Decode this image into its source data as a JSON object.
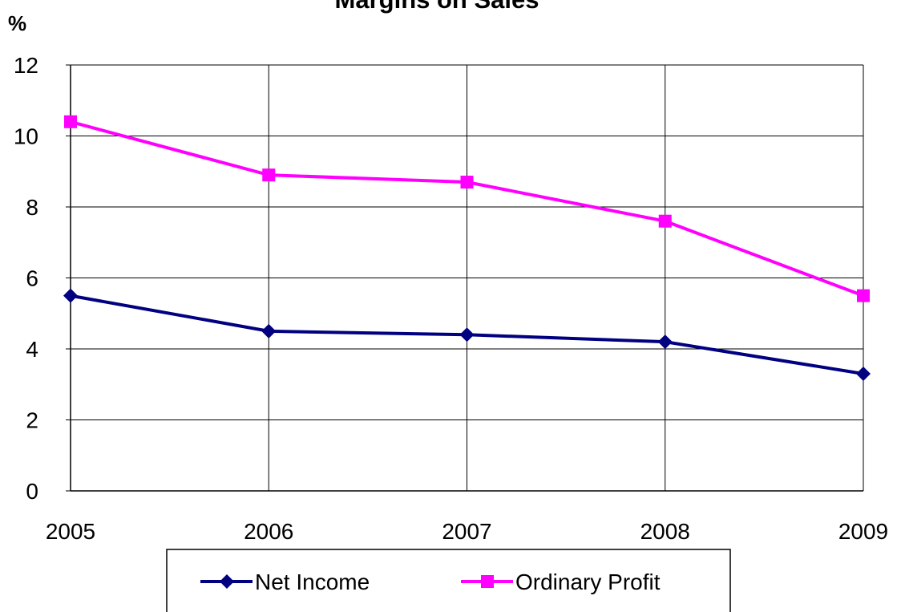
{
  "chart_data": {
    "type": "line",
    "title": "Margins on Sales",
    "y_label": "%",
    "categories": [
      "2005",
      "2006",
      "2007",
      "2008",
      "2009"
    ],
    "series": [
      {
        "name": "Net Income",
        "color": "#000080",
        "marker": "diamond",
        "values": [
          5.5,
          4.5,
          4.4,
          4.2,
          3.3
        ]
      },
      {
        "name": "Ordinary Profit",
        "color": "#ff00ff",
        "marker": "square",
        "values": [
          10.4,
          8.9,
          8.7,
          7.6,
          5.5
        ]
      }
    ],
    "ylim": [
      0,
      12
    ],
    "yticks": [
      0,
      2,
      4,
      6,
      8,
      10,
      12
    ],
    "grid": true,
    "legend": "bottom"
  }
}
